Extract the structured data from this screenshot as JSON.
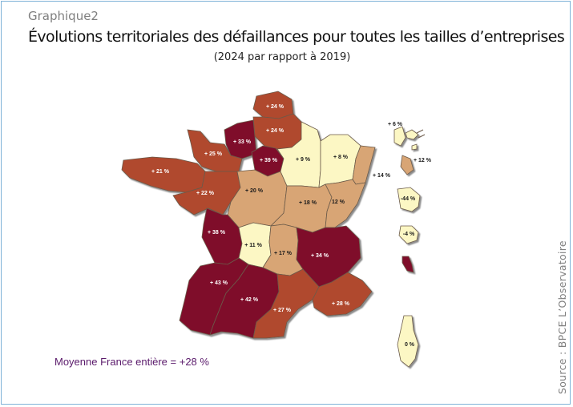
{
  "header": {
    "graph_label": "Graphique2",
    "title": "Évolutions territoriales des défaillances pour toutes les tailles d’entreprises",
    "subtitle": "(2024 par rapport à 2019)"
  },
  "footer": {
    "average": "Moyenne France entière = +28 %",
    "source": "Source : BPCE L’Observatoire"
  },
  "colors": {
    "very_high": "#7f1029",
    "high": "#b04a2e",
    "medium": "#d8a574",
    "low": "#fcf7c4",
    "light_label": "#ffffff",
    "dark_label": "#1a1a1a"
  },
  "map": {
    "regions": [
      {
        "id": "nord",
        "label": "+ 24 %",
        "value": 24
      },
      {
        "id": "picardie",
        "label": "+ 24 %",
        "value": 24
      },
      {
        "id": "haute-normandie",
        "label": "+ 33 %",
        "value": 33
      },
      {
        "id": "ile-de-france",
        "label": "+ 39 %",
        "value": 39
      },
      {
        "id": "basse-normandie",
        "label": "+ 25 %",
        "value": 25
      },
      {
        "id": "bretagne",
        "label": "+ 21 %",
        "value": 21
      },
      {
        "id": "pays-de-la-loire",
        "label": "+ 22 %",
        "value": 22
      },
      {
        "id": "centre",
        "label": "+ 20 %",
        "value": 20
      },
      {
        "id": "champagne-ardenne",
        "label": "+ 9 %",
        "value": 9
      },
      {
        "id": "lorraine",
        "label": "+ 8 %",
        "value": 8
      },
      {
        "id": "alsace",
        "label": "+ 14 %",
        "value": 14
      },
      {
        "id": "bourgogne",
        "label": "+ 18 %",
        "value": 18
      },
      {
        "id": "franche-comte",
        "label": "12 %",
        "value": 12
      },
      {
        "id": "poitou-charentes",
        "label": "+ 38 %",
        "value": 38
      },
      {
        "id": "limousin",
        "label": "+ 11 %",
        "value": 11
      },
      {
        "id": "auvergne",
        "label": "+ 17 %",
        "value": 17
      },
      {
        "id": "rhone-alpes",
        "label": "+ 34 %",
        "value": 34
      },
      {
        "id": "aquitaine",
        "label": "+ 43 %",
        "value": 43
      },
      {
        "id": "midi-pyrenees",
        "label": "+ 42 %",
        "value": 42
      },
      {
        "id": "languedoc-roussillon",
        "label": "+ 27 %",
        "value": 27
      },
      {
        "id": "paca",
        "label": "+ 28 %",
        "value": 28
      },
      {
        "id": "corse",
        "label": "0 %",
        "value": 0
      },
      {
        "id": "guadeloupe",
        "label": "+ 6 %",
        "value": 6
      },
      {
        "id": "martinique",
        "label": "+ 12 %",
        "value": 12
      },
      {
        "id": "guyane",
        "label": "-44 %",
        "value": -44
      },
      {
        "id": "reunion",
        "label": "-4 %",
        "value": -4
      },
      {
        "id": "mayotte",
        "label": "",
        "value": null
      }
    ]
  }
}
